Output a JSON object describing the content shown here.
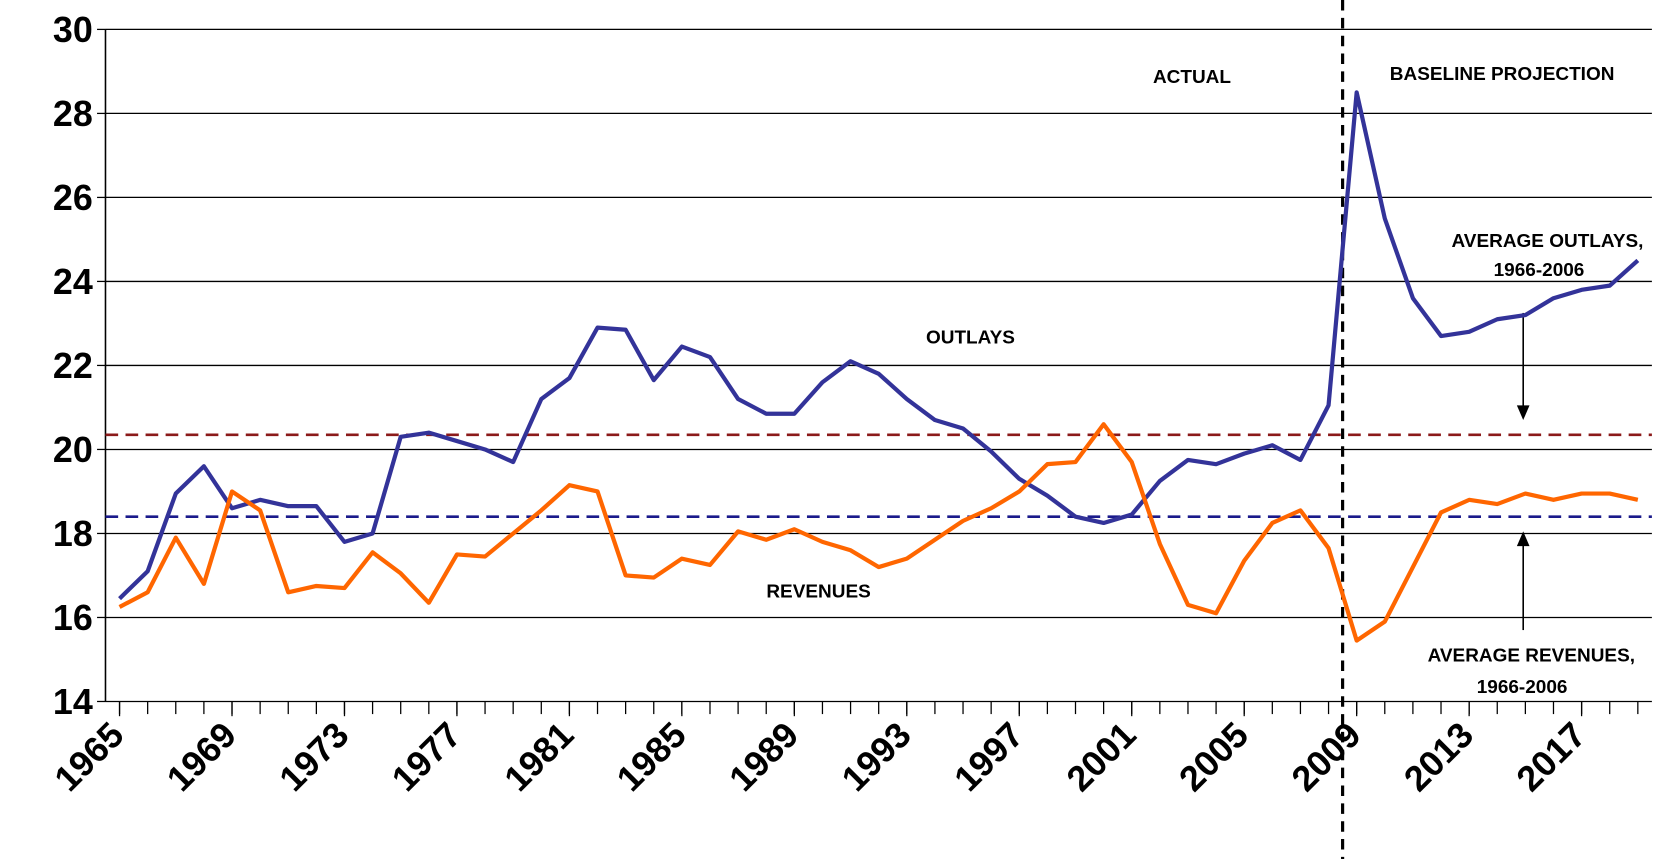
{
  "chart_data": {
    "type": "line",
    "x": [
      1965,
      1966,
      1967,
      1968,
      1969,
      1970,
      1971,
      1972,
      1973,
      1974,
      1975,
      1976,
      1977,
      1978,
      1979,
      1980,
      1981,
      1982,
      1983,
      1984,
      1985,
      1986,
      1987,
      1988,
      1989,
      1990,
      1991,
      1992,
      1993,
      1994,
      1995,
      1996,
      1997,
      1998,
      1999,
      2000,
      2001,
      2002,
      2003,
      2004,
      2005,
      2006,
      2007,
      2008,
      2009,
      2010,
      2011,
      2012,
      2013,
      2014,
      2015,
      2016,
      2017,
      2018,
      2019
    ],
    "series": [
      {
        "name": "OUTLAYS",
        "color": "#333399",
        "values": [
          16.45,
          17.1,
          18.95,
          19.6,
          18.6,
          18.8,
          18.65,
          18.65,
          17.8,
          18.0,
          20.3,
          20.4,
          20.2,
          20.0,
          19.7,
          21.2,
          21.7,
          22.9,
          22.85,
          21.65,
          22.45,
          22.2,
          21.2,
          20.85,
          20.85,
          21.6,
          22.1,
          21.8,
          21.2,
          20.7,
          20.5,
          19.95,
          19.3,
          18.9,
          18.4,
          18.25,
          18.45,
          19.25,
          19.75,
          19.65,
          19.9,
          20.1,
          19.75,
          21.05,
          28.5,
          25.5,
          23.6,
          22.7,
          22.8,
          23.1,
          23.2,
          23.6,
          23.8,
          23.9,
          24.5
        ]
      },
      {
        "name": "REVENUES",
        "color": "#ff6600",
        "values": [
          16.25,
          16.6,
          17.9,
          16.8,
          19.0,
          18.55,
          16.6,
          16.75,
          16.7,
          17.55,
          17.05,
          16.35,
          17.5,
          17.45,
          18.0,
          18.55,
          19.15,
          19.0,
          17.0,
          16.95,
          17.4,
          17.25,
          18.05,
          17.85,
          18.1,
          17.8,
          17.6,
          17.2,
          17.4,
          17.85,
          18.3,
          18.6,
          19.0,
          19.65,
          19.7,
          20.6,
          19.7,
          17.75,
          16.3,
          16.1,
          17.35,
          18.25,
          18.55,
          17.65,
          15.45,
          15.9,
          17.2,
          18.5,
          18.8,
          18.7,
          18.95,
          18.8,
          18.95,
          18.95,
          18.8
        ]
      }
    ],
    "reference_lines": [
      {
        "name": "AVERAGE OUTLAYS, 1966-2006",
        "color": "#8b1a1a",
        "value": 20.35
      },
      {
        "name": "AVERAGE REVENUES, 1966-2006",
        "color": "#1a1a8b",
        "value": 18.4
      }
    ],
    "divider_x": 2008.5,
    "annotations": [
      "ACTUAL",
      "BASELINE PROJECTION",
      "AVERAGE OUTLAYS,",
      "1966-2006",
      "AVERAGE REVENUES,",
      "1966-2006"
    ],
    "xlim": [
      1964.5,
      2019.5
    ],
    "xticks": [
      1965,
      1969,
      1973,
      1977,
      1981,
      1985,
      1989,
      1993,
      1997,
      2001,
      2005,
      2009,
      2013,
      2017
    ],
    "ylim": [
      14,
      30
    ],
    "yticks": [
      14,
      16,
      18,
      20,
      22,
      24,
      26,
      28,
      30
    ],
    "grid": true
  }
}
